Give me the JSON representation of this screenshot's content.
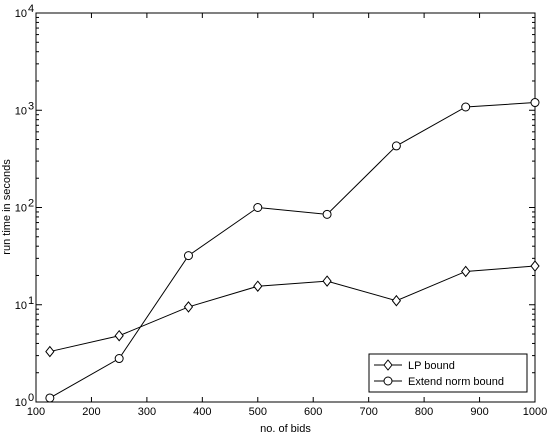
{
  "chart_data": {
    "type": "line",
    "title": "",
    "xlabel": "no. of bids",
    "ylabel": "run time in seconds",
    "xlim": [
      100,
      1000
    ],
    "ylim": [
      1,
      10000
    ],
    "yscale": "log",
    "grid": false,
    "legend_position": "bottom-right",
    "x_ticks": [
      "100",
      "200",
      "300",
      "400",
      "500",
      "600",
      "700",
      "800",
      "900",
      "1000"
    ],
    "y_ticks": [
      {
        "base": "10",
        "exp": "0"
      },
      {
        "base": "10",
        "exp": "1"
      },
      {
        "base": "10",
        "exp": "2"
      },
      {
        "base": "10",
        "exp": "3"
      },
      {
        "base": "10",
        "exp": "4"
      }
    ],
    "x": [
      125,
      250,
      375,
      500,
      625,
      750,
      875,
      1000
    ],
    "series": [
      {
        "name": "LP bound",
        "marker": "diamond",
        "values": [
          3.3,
          4.8,
          9.5,
          15.5,
          17.5,
          11,
          22,
          25
        ]
      },
      {
        "name": "Extend norm bound",
        "marker": "circle",
        "values": [
          1.1,
          2.8,
          32,
          100,
          85,
          430,
          1080,
          1200
        ]
      }
    ]
  }
}
